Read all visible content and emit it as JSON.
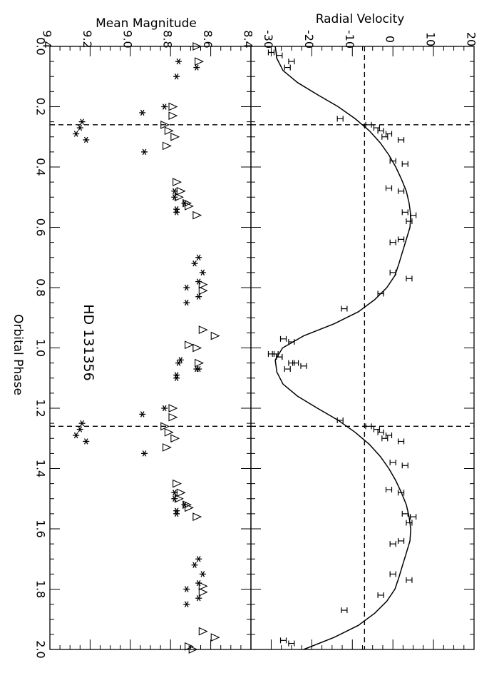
{
  "labels": {
    "top_xlabel_left": "Mean Magnitude",
    "top_xlabel_right": "Radial Velocity",
    "bottom_label": "Orbital Phase",
    "star_name": "HD 131356"
  },
  "chart_data": [
    {
      "type": "scatter",
      "panel": "radial-velocity",
      "xlabel": "Orbital Phase",
      "ylabel": "Radial Velocity",
      "orientation": "rotated 90° (phase vertical, velocity horizontal, velocity increasing to the right)",
      "xlim": [
        0.0,
        2.0
      ],
      "ylim": [
        -35,
        20
      ],
      "x_ticks": [
        "0.0",
        "0.2",
        "0.4",
        "0.6",
        "0.8",
        "1.0",
        "1.2",
        "1.4",
        "1.6",
        "1.8",
        "2.0"
      ],
      "y_ticks": [
        "-30",
        "-20",
        "-10",
        "0",
        "10",
        "20"
      ],
      "dashed_velocity": -7,
      "dashed_phase": [
        0.26,
        1.26
      ],
      "model_curve": {
        "phase": [
          0.0,
          0.04,
          0.08,
          0.12,
          0.16,
          0.2,
          0.24,
          0.28,
          0.32,
          0.36,
          0.4,
          0.44,
          0.48,
          0.52,
          0.56,
          0.6,
          0.64,
          0.68,
          0.72,
          0.76,
          0.8,
          0.84,
          0.88,
          0.92,
          0.96,
          1.0,
          1.04,
          1.08,
          1.12,
          1.16,
          1.2,
          1.24,
          1.28,
          1.32,
          1.36,
          1.4,
          1.44,
          1.48,
          1.52,
          1.56,
          1.6,
          1.64,
          1.68,
          1.72,
          1.76,
          1.8,
          1.84,
          1.88,
          1.92,
          1.96,
          2.0
        ],
        "velocity": [
          -29,
          -28.6,
          -27.1,
          -23.5,
          -18.6,
          -13.5,
          -9.3,
          -5.8,
          -3.1,
          -1.0,
          0.7,
          2.1,
          3.3,
          4.0,
          4.4,
          4.2,
          3.3,
          2.4,
          1.5,
          0.5,
          -1.5,
          -4.5,
          -8.5,
          -14.5,
          -22,
          -27.2,
          -29,
          -28.6,
          -27.1,
          -23.5,
          -18.6,
          -13.5,
          -9.3,
          -5.8,
          -3.1,
          -1.0,
          0.7,
          2.1,
          3.3,
          4.0,
          4.4,
          4.2,
          3.3,
          2.4,
          1.5,
          0.5,
          -1.5,
          -4.5,
          -8.5,
          -14.5,
          -22
        ]
      },
      "observations": {
        "phase": [
          0.02,
          0.03,
          0.05,
          0.07,
          0.24,
          0.26,
          0.27,
          0.28,
          0.29,
          0.3,
          0.31,
          0.38,
          0.39,
          0.47,
          0.48,
          0.55,
          0.56,
          0.58,
          0.64,
          0.65,
          0.75,
          0.77,
          0.82,
          0.87,
          0.97,
          0.98,
          1.02,
          1.03,
          1.05,
          1.06
        ],
        "velocity": [
          -30,
          -28,
          -25,
          -26,
          -13,
          -6,
          -4,
          -3,
          -1,
          -2,
          2,
          0,
          3,
          -1,
          2,
          3,
          5,
          4,
          2,
          0,
          0,
          4,
          -3,
          -12,
          -27,
          -25,
          -29,
          -28,
          -24,
          -22
        ],
        "error_symbol": "H (horizontal error bar)"
      }
    },
    {
      "type": "scatter",
      "panel": "mean-magnitude",
      "xlabel": "Orbital Phase",
      "ylabel": "Mean Magnitude",
      "orientation": "rotated 90° (phase vertical, magnitude horizontal, brighter to the right)",
      "xlim": [
        0.0,
        2.0
      ],
      "ylim": [
        9.4,
        8.4
      ],
      "x_ticks": [
        "0.0",
        "0.2",
        "0.4",
        "0.6",
        "0.8",
        "1.0",
        "1.2",
        "1.4",
        "1.6",
        "1.8",
        "2.0"
      ],
      "y_ticks": [
        "9.4",
        "9.2",
        "9.0",
        "8.8",
        "8.6",
        "8.4"
      ],
      "dashed_phase": [
        0.26,
        1.26
      ],
      "series": [
        {
          "name": "asterisk",
          "symbol": "asterisk",
          "phase": [
            0.05,
            0.07,
            0.1,
            0.2,
            0.22,
            0.25,
            0.27,
            0.29,
            0.31,
            0.35,
            0.48,
            0.5,
            0.52,
            0.54,
            0.55,
            0.7,
            0.72,
            0.75,
            0.78,
            0.8,
            0.83,
            0.85,
            1.04,
            1.07,
            1.09
          ],
          "magnitude": [
            8.76,
            8.67,
            8.77,
            8.83,
            8.94,
            9.24,
            9.25,
            9.27,
            9.22,
            8.93,
            8.78,
            8.78,
            8.73,
            8.77,
            8.77,
            8.66,
            8.68,
            8.64,
            8.66,
            8.72,
            8.66,
            8.72,
            8.75,
            8.66,
            8.77
          ]
        },
        {
          "name": "triangle",
          "symbol": "open triangle",
          "phase": [
            0.0,
            0.05,
            0.2,
            0.23,
            0.26,
            0.28,
            0.3,
            0.33,
            0.45,
            0.48,
            0.5,
            0.52,
            0.53,
            0.56,
            0.79,
            0.81,
            0.94,
            0.96,
            0.99,
            2.0
          ],
          "magnitude": [
            8.67,
            8.66,
            8.79,
            8.79,
            8.83,
            8.81,
            8.78,
            8.82,
            8.77,
            8.75,
            8.76,
            8.72,
            8.71,
            8.67,
            8.64,
            8.64,
            8.64,
            8.58,
            8.71,
            8.69
          ]
        }
      ]
    }
  ]
}
